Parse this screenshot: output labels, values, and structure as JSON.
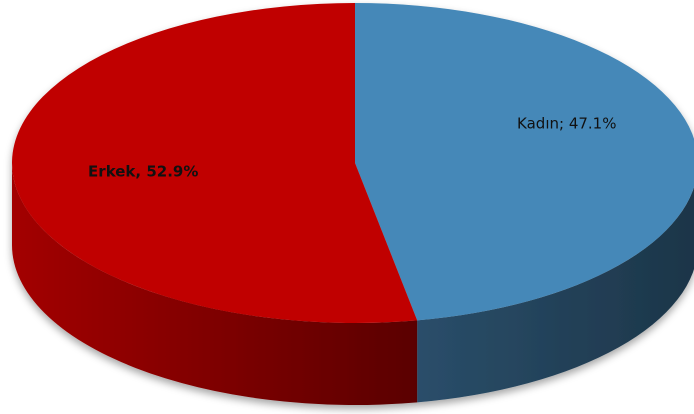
{
  "chart_data": {
    "type": "pie3d",
    "values": [
      47.1,
      52.9
    ],
    "value_labels": [
      "Kadın; 47.1%",
      "Erkek, 52.9%"
    ],
    "colors": [
      "#4588b8",
      "#c00000"
    ]
  }
}
